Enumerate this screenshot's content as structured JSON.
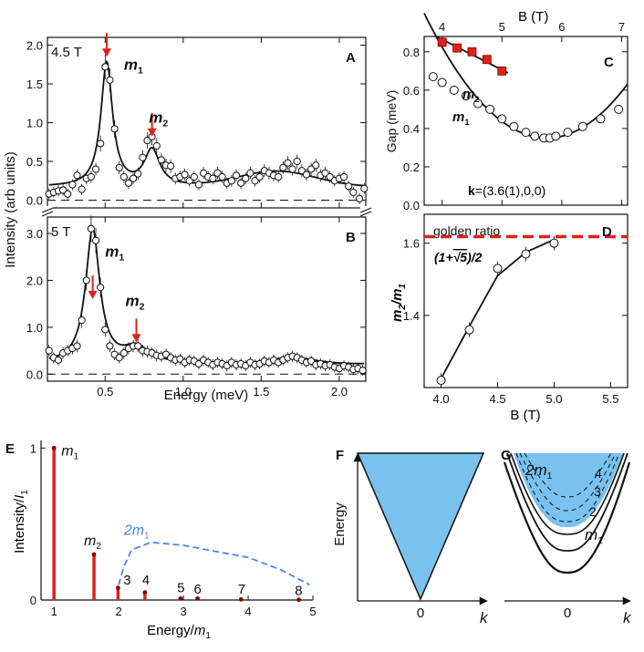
{
  "colors": {
    "red": "#e0201b",
    "blue": "#4a86e8",
    "fill_blue": "#79c1ee",
    "black": "#111111"
  },
  "chart_data": [
    {
      "id": "A",
      "type": "scatter",
      "panel_label": "A",
      "field_label": "4.5 T",
      "ylabel": "Intensity (arb units)",
      "xlim": [
        0.13,
        2.17
      ],
      "ylim": [
        -0.1,
        2.1
      ],
      "yticks": [
        0.0,
        0.5,
        1.0,
        1.5,
        2.0
      ],
      "ytick_labels": [
        "0.0",
        "0.5",
        "1.0",
        "1.5",
        "2.0"
      ],
      "xticks": [
        0.5,
        1.0,
        1.5,
        2.0
      ],
      "peak_labels": [
        {
          "text": "m",
          "sub": "1",
          "x": 0.62,
          "y": 1.68
        },
        {
          "text": "m",
          "sub": "2",
          "x": 0.78,
          "y": 1.0
        }
      ],
      "arrows": [
        {
          "x": 0.51,
          "y_tip": 1.85
        },
        {
          "x": 0.8,
          "y_tip": 0.82
        }
      ],
      "fit_curve": {
        "baseline": 0.17,
        "bump": {
          "center": 1.6,
          "amp": 0.2,
          "width": 0.35
        },
        "peaks": [
          {
            "center": 0.51,
            "amp": 1.6,
            "width": 0.045
          },
          {
            "center": 0.8,
            "amp": 0.47,
            "width": 0.06
          }
        ]
      },
      "points": [
        [
          0.14,
          0.08
        ],
        [
          0.17,
          0.1
        ],
        [
          0.2,
          0.12
        ],
        [
          0.23,
          0.13
        ],
        [
          0.26,
          0.08
        ],
        [
          0.29,
          0.2
        ],
        [
          0.32,
          0.32
        ],
        [
          0.35,
          0.14
        ],
        [
          0.38,
          0.28
        ],
        [
          0.41,
          0.3
        ],
        [
          0.44,
          0.4
        ],
        [
          0.47,
          0.73
        ],
        [
          0.5,
          1.72
        ],
        [
          0.53,
          1.55
        ],
        [
          0.56,
          0.92
        ],
        [
          0.59,
          0.42
        ],
        [
          0.62,
          0.3
        ],
        [
          0.65,
          0.22
        ],
        [
          0.68,
          0.28
        ],
        [
          0.71,
          0.34
        ],
        [
          0.74,
          0.55
        ],
        [
          0.77,
          0.77
        ],
        [
          0.8,
          0.82
        ],
        [
          0.83,
          0.7
        ],
        [
          0.86,
          0.52
        ],
        [
          0.89,
          0.45
        ],
        [
          0.92,
          0.44
        ],
        [
          0.95,
          0.28
        ],
        [
          0.98,
          0.3
        ],
        [
          1.01,
          0.33
        ],
        [
          1.04,
          0.25
        ],
        [
          1.07,
          0.3
        ],
        [
          1.1,
          0.2
        ],
        [
          1.13,
          0.35
        ],
        [
          1.16,
          0.3
        ],
        [
          1.19,
          0.28
        ],
        [
          1.22,
          0.35
        ],
        [
          1.25,
          0.3
        ],
        [
          1.28,
          0.22
        ],
        [
          1.31,
          0.25
        ],
        [
          1.34,
          0.32
        ],
        [
          1.37,
          0.22
        ],
        [
          1.4,
          0.28
        ],
        [
          1.43,
          0.35
        ],
        [
          1.46,
          0.25
        ],
        [
          1.49,
          0.3
        ],
        [
          1.52,
          0.38
        ],
        [
          1.55,
          0.35
        ],
        [
          1.58,
          0.32
        ],
        [
          1.61,
          0.3
        ],
        [
          1.64,
          0.42
        ],
        [
          1.67,
          0.48
        ],
        [
          1.7,
          0.4
        ],
        [
          1.73,
          0.5
        ],
        [
          1.76,
          0.38
        ],
        [
          1.79,
          0.33
        ],
        [
          1.82,
          0.4
        ],
        [
          1.85,
          0.45
        ],
        [
          1.88,
          0.32
        ],
        [
          1.91,
          0.35
        ],
        [
          1.94,
          0.3
        ],
        [
          1.97,
          0.25
        ],
        [
          2.0,
          0.28
        ],
        [
          2.03,
          0.3
        ],
        [
          2.06,
          0.18
        ],
        [
          2.09,
          0.1
        ],
        [
          2.13,
          0.02
        ],
        [
          2.16,
          0.15
        ]
      ]
    },
    {
      "id": "B",
      "type": "scatter",
      "panel_label": "B",
      "field_label": "5 T",
      "xlabel": "Energy (meV)",
      "xlim": [
        0.13,
        2.17
      ],
      "ylim": [
        -0.15,
        3.35
      ],
      "yticks": [
        0.0,
        1.0,
        2.0,
        3.0
      ],
      "ytick_labels": [
        "0.0",
        "1.0",
        "2.0",
        "3.0"
      ],
      "xticks": [
        0.5,
        1.0,
        1.5,
        2.0
      ],
      "xtick_labels": [
        "0.5",
        "1.0",
        "1.5",
        "2.0"
      ],
      "peak_labels": [
        {
          "text": "m",
          "sub": "1",
          "x": 0.5,
          "y": 2.5
        },
        {
          "text": "m",
          "sub": "2",
          "x": 0.63,
          "y": 1.45
        }
      ],
      "arrows": [
        {
          "x": 0.42,
          "y_tip": 1.6
        },
        {
          "x": 0.7,
          "y_tip": 0.68
        }
      ],
      "fit_curve": {
        "baseline": 0.22,
        "bump": {
          "center": 1.7,
          "amp": 0.12,
          "width": 0.2
        },
        "peaks": [
          {
            "center": 0.42,
            "amp": 2.85,
            "width": 0.055
          },
          {
            "center": 0.7,
            "amp": 0.33,
            "width": 0.1
          }
        ]
      },
      "points": [
        [
          0.14,
          0.5
        ],
        [
          0.17,
          0.35
        ],
        [
          0.2,
          0.3
        ],
        [
          0.23,
          0.45
        ],
        [
          0.26,
          0.5
        ],
        [
          0.29,
          0.55
        ],
        [
          0.32,
          0.6
        ],
        [
          0.35,
          1.15
        ],
        [
          0.38,
          2.0
        ],
        [
          0.41,
          3.1
        ],
        [
          0.44,
          2.85
        ],
        [
          0.47,
          1.85
        ],
        [
          0.5,
          0.95
        ],
        [
          0.53,
          0.6
        ],
        [
          0.56,
          0.42
        ],
        [
          0.59,
          0.35
        ],
        [
          0.62,
          0.45
        ],
        [
          0.65,
          0.55
        ],
        [
          0.68,
          0.6
        ],
        [
          0.71,
          0.6
        ],
        [
          0.74,
          0.5
        ],
        [
          0.77,
          0.48
        ],
        [
          0.8,
          0.45
        ],
        [
          0.83,
          0.4
        ],
        [
          0.86,
          0.38
        ],
        [
          0.89,
          0.42
        ],
        [
          0.92,
          0.35
        ],
        [
          0.95,
          0.3
        ],
        [
          0.98,
          0.32
        ],
        [
          1.01,
          0.25
        ],
        [
          1.04,
          0.3
        ],
        [
          1.07,
          0.28
        ],
        [
          1.1,
          0.22
        ],
        [
          1.13,
          0.3
        ],
        [
          1.16,
          0.25
        ],
        [
          1.19,
          0.2
        ],
        [
          1.22,
          0.25
        ],
        [
          1.25,
          0.22
        ],
        [
          1.28,
          0.18
        ],
        [
          1.31,
          0.25
        ],
        [
          1.34,
          0.2
        ],
        [
          1.37,
          0.22
        ],
        [
          1.4,
          0.18
        ],
        [
          1.43,
          0.25
        ],
        [
          1.46,
          0.2
        ],
        [
          1.49,
          0.22
        ],
        [
          1.52,
          0.28
        ],
        [
          1.55,
          0.25
        ],
        [
          1.58,
          0.3
        ],
        [
          1.61,
          0.25
        ],
        [
          1.64,
          0.3
        ],
        [
          1.67,
          0.35
        ],
        [
          1.7,
          0.38
        ],
        [
          1.73,
          0.35
        ],
        [
          1.76,
          0.3
        ],
        [
          1.79,
          0.25
        ],
        [
          1.82,
          0.28
        ],
        [
          1.85,
          0.2
        ],
        [
          1.88,
          0.22
        ],
        [
          1.91,
          0.18
        ],
        [
          1.94,
          0.2
        ],
        [
          1.97,
          0.15
        ],
        [
          2.0,
          0.12
        ],
        [
          2.03,
          0.18
        ],
        [
          2.06,
          0.15
        ],
        [
          2.09,
          0.1
        ],
        [
          2.12,
          0.12
        ],
        [
          2.15,
          0.08
        ]
      ]
    },
    {
      "id": "C",
      "type": "scatter",
      "panel_label": "C",
      "ylabel": "Gap (meV)",
      "xlabel_top": "B (T)",
      "xlim": [
        3.7,
        7.1
      ],
      "ylim": [
        0,
        0.88
      ],
      "yticks": [
        0.0,
        0.2,
        0.4,
        0.6,
        0.8
      ],
      "ytick_labels": [
        "0.0",
        "0.2",
        "0.4",
        "0.6",
        "0.8"
      ],
      "xticks_top": [
        4,
        5,
        6,
        7
      ],
      "xtick_top_labels": [
        "4",
        "5",
        "6",
        "7"
      ],
      "annotation": "(3.6(1),0,0)",
      "annotation_bold": "k",
      "annotation_eq": "=",
      "series": [
        {
          "name": "m2",
          "label": "m",
          "sub": "2",
          "marker": "red-square",
          "x": [
            4.0,
            4.25,
            4.5,
            4.75,
            5.0
          ],
          "y": [
            0.85,
            0.82,
            0.8,
            0.76,
            0.7
          ],
          "fit": [
            [
              3.9,
              0.88
            ],
            [
              5.1,
              0.69
            ]
          ]
        },
        {
          "name": "m1",
          "label": "m",
          "sub": "1",
          "marker": "open-circle",
          "x": [
            3.85,
            4.0,
            4.2,
            4.4,
            4.6,
            4.8,
            5.0,
            5.2,
            5.4,
            5.55,
            5.7,
            5.8,
            5.9,
            6.1,
            6.35,
            6.65,
            6.95
          ],
          "y": [
            0.67,
            0.64,
            0.6,
            0.57,
            0.53,
            0.5,
            0.45,
            0.41,
            0.38,
            0.36,
            0.35,
            0.35,
            0.36,
            0.38,
            0.41,
            0.45,
            0.5
          ],
          "fit_quadratic": {
            "min_x": 5.75,
            "min_y": 0.35,
            "curvature": 0.155
          }
        }
      ]
    },
    {
      "id": "D",
      "type": "scatter",
      "panel_label": "D",
      "ylabel_main": "m",
      "ylabel_sub1": "2",
      "ylabel_mid": "/m",
      "ylabel_sub2": "1",
      "xlabel": "B (T)",
      "xlim": [
        3.85,
        5.65
      ],
      "ylim": [
        1.2,
        1.68
      ],
      "yticks": [
        1.4,
        1.6
      ],
      "ytick_labels": [
        "1.4",
        "1.6"
      ],
      "xticks": [
        4.0,
        4.5,
        5.0,
        5.5
      ],
      "xtick_labels": [
        "4.0",
        "4.5",
        "5.0",
        "5.5"
      ],
      "golden_ratio_value": 1.618,
      "golden_label": "golden ratio",
      "golden_formula_left": "(1+",
      "golden_formula_sqrt": "√5",
      "golden_formula_right": ")/2",
      "x": [
        4.0,
        4.25,
        4.5,
        4.75,
        5.0
      ],
      "y": [
        1.22,
        1.36,
        1.53,
        1.57,
        1.6
      ],
      "fit": [
        [
          4.0,
          1.225
        ],
        [
          4.25,
          1.37
        ],
        [
          4.5,
          1.51
        ],
        [
          4.75,
          1.575
        ],
        [
          5.0,
          1.61
        ]
      ]
    },
    {
      "id": "E",
      "type": "bar",
      "panel_label": "E",
      "ylabel_main": "Intensity/",
      "ylabel_italic": "I",
      "ylabel_sub": "1",
      "xlabel_main": "Energy/",
      "xlabel_italic": "m",
      "xlabel_sub": "1",
      "xlim": [
        0.8,
        5.0
      ],
      "ylim": [
        0,
        1.05
      ],
      "yticks": [
        0,
        1
      ],
      "ytick_labels": [
        "0",
        "1"
      ],
      "xticks": [
        1,
        2,
        3,
        4,
        5
      ],
      "xtick_labels": [
        "1",
        "2",
        "3",
        "4",
        "5"
      ],
      "categories": [
        "m1",
        "m2",
        "3",
        "4",
        "5",
        "6",
        "7",
        "8"
      ],
      "x": [
        1.0,
        1.618,
        1.989,
        2.405,
        2.956,
        3.218,
        3.891,
        4.783
      ],
      "values": [
        1.0,
        0.3,
        0.08,
        0.05,
        0.01,
        0.01,
        0.004,
        0.002
      ],
      "bar_labels": [
        {
          "text": "m",
          "sub": "1",
          "italic": true
        },
        {
          "text": "m",
          "sub": "2",
          "italic": true
        },
        {
          "text": "3"
        },
        {
          "text": "4"
        },
        {
          "text": "5"
        },
        {
          "text": "6"
        },
        {
          "text": "7"
        },
        {
          "text": "8"
        }
      ],
      "continuum_label": "2m",
      "continuum_sub": "1",
      "continuum": [
        [
          2.0,
          0.1
        ],
        [
          2.08,
          0.22
        ],
        [
          2.2,
          0.33
        ],
        [
          2.5,
          0.38
        ],
        [
          3.0,
          0.36
        ],
        [
          3.5,
          0.32
        ],
        [
          4.0,
          0.28
        ],
        [
          4.5,
          0.2
        ],
        [
          4.95,
          0.1
        ]
      ]
    },
    {
      "id": "F",
      "type": "diagram",
      "panel_label": "F",
      "ylabel": "Energy",
      "xlabel": "k",
      "origin_label": "0"
    },
    {
      "id": "G",
      "type": "diagram",
      "panel_label": "G",
      "xlabel": "k",
      "origin_label": "0",
      "continuum_label": "2m",
      "continuum_sub": "1",
      "branch_labels": [
        "4",
        "3",
        "2"
      ],
      "lowest_label": "m",
      "lowest_sub": "1"
    }
  ]
}
